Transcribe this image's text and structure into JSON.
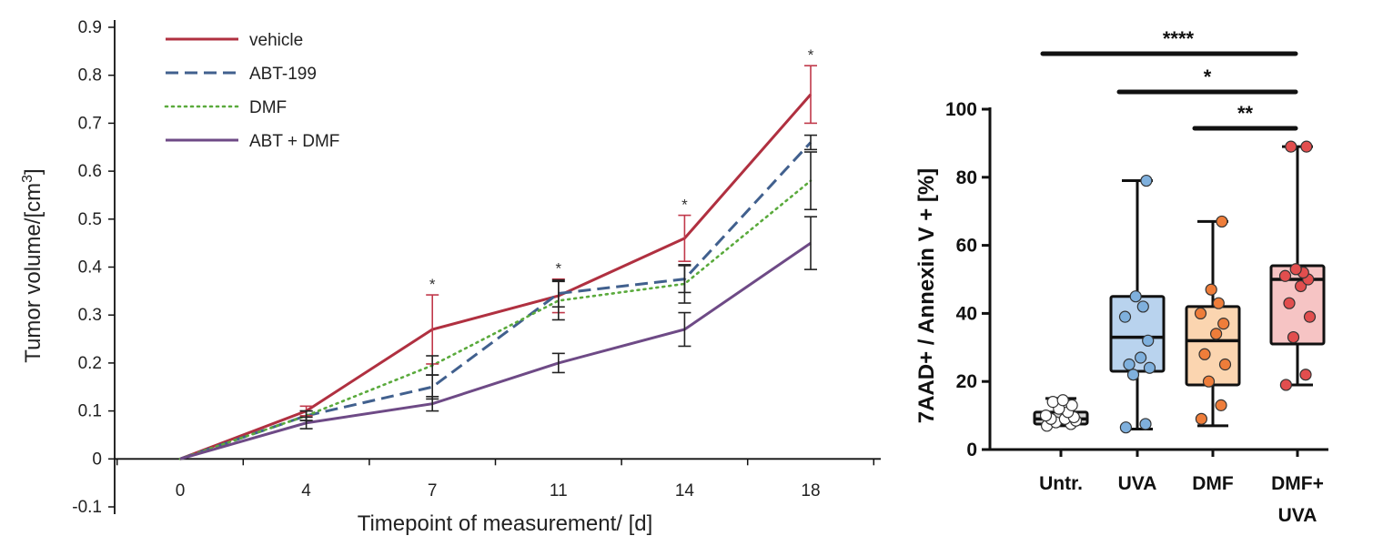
{
  "chart_data": [
    {
      "type": "line",
      "xlabel": "Timepoint of measurement/ [d]",
      "ylabel_main": "Tumor volume/[cm",
      "ylabel_sup": "3",
      "ylabel_end": "]",
      "categories": [
        "0",
        "4",
        "7",
        "11",
        "14",
        "18"
      ],
      "ylim": [
        -0.1,
        0.9
      ],
      "yticks": [
        -0.1,
        0,
        0.1,
        0.2,
        0.3,
        0.4,
        0.5,
        0.6,
        0.7,
        0.8,
        0.9
      ],
      "ytick_labels": [
        "-0.1",
        "0",
        "0.1",
        "0.2",
        "0.3",
        "0.4",
        "0.5",
        "0.6",
        "0.7",
        "0.8",
        "0.9"
      ],
      "legend_position": "top-left",
      "series": [
        {
          "name": "vehicle",
          "style": "solid",
          "color": "#b03040",
          "errcolor": "#c0384a",
          "values": [
            0,
            0.1,
            0.27,
            0.34,
            0.46,
            0.76
          ],
          "errors": [
            0,
            0.01,
            0.072,
            0.035,
            0.048,
            0.06
          ]
        },
        {
          "name": "ABT-199",
          "style": "dashed",
          "color": "#41608e",
          "errcolor": "#222222",
          "values": [
            0,
            0.09,
            0.15,
            0.345,
            0.375,
            0.66
          ],
          "errors": [
            0,
            0.01,
            0.025,
            0.028,
            0.028,
            0.015
          ]
        },
        {
          "name": "DMF",
          "style": "dotted",
          "color": "#5aaa3c",
          "errcolor": "#222222",
          "values": [
            0,
            0.09,
            0.195,
            0.33,
            0.365,
            0.58
          ],
          "errors": [
            0,
            0.01,
            0.02,
            0.04,
            0.04,
            0.06
          ]
        },
        {
          "name": "ABT + DMF",
          "style": "solid",
          "color": "#6e4a86",
          "errcolor": "#222222",
          "values": [
            0,
            0.075,
            0.115,
            0.2,
            0.27,
            0.45
          ],
          "errors": [
            0,
            0.012,
            0.015,
            0.02,
            0.035,
            0.055
          ]
        }
      ],
      "significance": [
        {
          "category": "7",
          "label": "*"
        },
        {
          "category": "11",
          "label": "*"
        },
        {
          "category": "14",
          "label": "*"
        },
        {
          "category": "18",
          "label": "*"
        }
      ]
    },
    {
      "type": "box",
      "ylabel": "7AAD+ / Annexin V + [%]",
      "ylim": [
        0,
        100
      ],
      "yticks": [
        0,
        20,
        40,
        60,
        80,
        100
      ],
      "ytick_labels": [
        "0",
        "20",
        "40",
        "60",
        "80",
        "100"
      ],
      "groups": [
        {
          "label": "Untr.",
          "label2": "",
          "fill": "#d8d8d8",
          "dot": "#ffffff",
          "min": 7,
          "q1": 7.5,
          "median": 9,
          "q3": 11,
          "max": 15,
          "points": [
            7,
            7.5,
            8,
            8.5,
            9,
            9,
            9.5,
            10,
            11,
            12,
            13,
            14,
            14.5
          ]
        },
        {
          "label": "UVA",
          "label2": "",
          "fill": "#b9d3ee",
          "dot": "#7fb0dd",
          "min": 6,
          "q1": 23,
          "median": 33,
          "q3": 45,
          "max": 79,
          "points": [
            6.5,
            7.5,
            22,
            24,
            25,
            27,
            32,
            39,
            42,
            45,
            79
          ]
        },
        {
          "label": "DMF",
          "label2": "",
          "fill": "#fbd5b0",
          "dot": "#ee7d3a",
          "min": 7,
          "q1": 19,
          "median": 32,
          "q3": 42,
          "max": 67,
          "points": [
            9,
            13,
            20,
            25,
            28,
            34,
            37,
            40,
            43,
            47,
            67
          ]
        },
        {
          "label": "DMF+",
          "label2": "UVA",
          "fill": "#f6c4c4",
          "dot": "#e24e4e",
          "min": 19,
          "q1": 31,
          "median": 50,
          "q3": 54,
          "max": 89,
          "points": [
            19,
            22,
            33,
            39,
            43,
            48,
            50,
            51,
            52,
            53,
            89,
            89
          ]
        }
      ],
      "significance": [
        {
          "from": 0,
          "to": 3,
          "label": "****"
        },
        {
          "from": 1,
          "to": 3,
          "label": "*"
        },
        {
          "from": 2,
          "to": 3,
          "label": "**"
        }
      ]
    }
  ]
}
